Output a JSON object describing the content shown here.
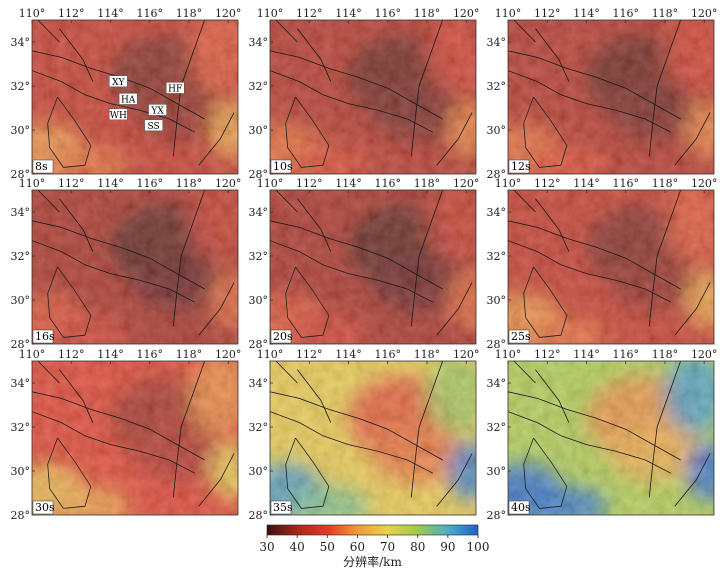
{
  "chart_data": {
    "type": "heatmap",
    "panel_count": 9,
    "x_range": [
      110,
      120.5
    ],
    "y_range": [
      28,
      35
    ],
    "x_ticks": [
      110,
      112,
      114,
      116,
      118,
      120
    ],
    "y_ticks": [
      28,
      30,
      32,
      34
    ],
    "x_tick_labels": [
      "110°",
      "112°",
      "114°",
      "116°",
      "118°",
      "120°"
    ],
    "y_tick_labels": [
      "28°",
      "30°",
      "32°",
      "34°"
    ],
    "panels": [
      {
        "label": "8s",
        "median_resolution_km": 45
      },
      {
        "label": "10s",
        "median_resolution_km": 42
      },
      {
        "label": "12s",
        "median_resolution_km": 42
      },
      {
        "label": "16s",
        "median_resolution_km": 40
      },
      {
        "label": "20s",
        "median_resolution_km": 40
      },
      {
        "label": "25s",
        "median_resolution_km": 45
      },
      {
        "label": "30s",
        "median_resolution_km": 50
      },
      {
        "label": "35s",
        "median_resolution_km": 68
      },
      {
        "label": "40s",
        "median_resolution_km": 78
      }
    ],
    "station_labels": [
      {
        "text": "XY",
        "lon": 114.4,
        "lat": 32.1
      },
      {
        "text": "HF",
        "lon": 117.3,
        "lat": 31.8
      },
      {
        "text": "HA",
        "lon": 114.9,
        "lat": 31.3
      },
      {
        "text": "YX",
        "lon": 116.4,
        "lat": 30.8
      },
      {
        "text": "WH",
        "lon": 114.4,
        "lat": 30.6
      },
      {
        "text": "SS",
        "lon": 116.2,
        "lat": 30.1
      }
    ],
    "colorbar": {
      "min": 30,
      "max": 100,
      "ticks": [
        "30",
        "40",
        "50",
        "60",
        "70",
        "80",
        "90",
        "100"
      ],
      "label": "分辨率/km",
      "colors": [
        "#3a0f0f",
        "#a8281c",
        "#e03a26",
        "#f29a3a",
        "#e8d24a",
        "#9ec94a",
        "#48b0c4",
        "#1f5fd0"
      ]
    }
  }
}
